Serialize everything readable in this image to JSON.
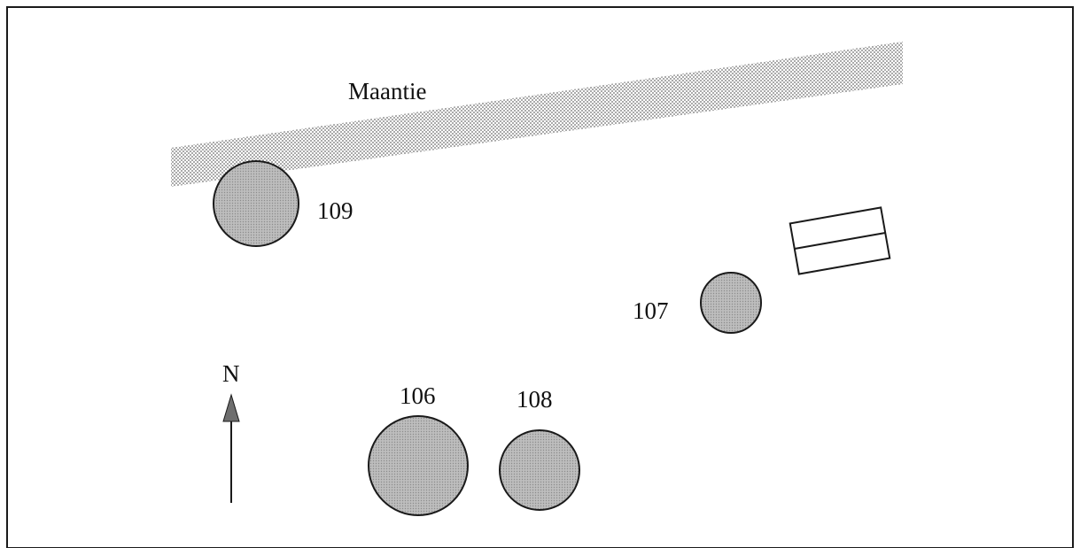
{
  "map": {
    "labels": {
      "road": "Maantie",
      "north": "N"
    },
    "features": [
      {
        "id": "109",
        "label": "109",
        "type": "circle-feature"
      },
      {
        "id": "107",
        "label": "107",
        "type": "circle-feature"
      },
      {
        "id": "106",
        "label": "106",
        "type": "circle-feature"
      },
      {
        "id": "108",
        "label": "108",
        "type": "circle-feature"
      }
    ],
    "icons": [
      "north-arrow-icon"
    ],
    "colors": {
      "stipple": "#7a7a7a",
      "circle_fill": "#b0b0b0",
      "outline": "#1a1a1a",
      "background": "#ffffff"
    }
  }
}
